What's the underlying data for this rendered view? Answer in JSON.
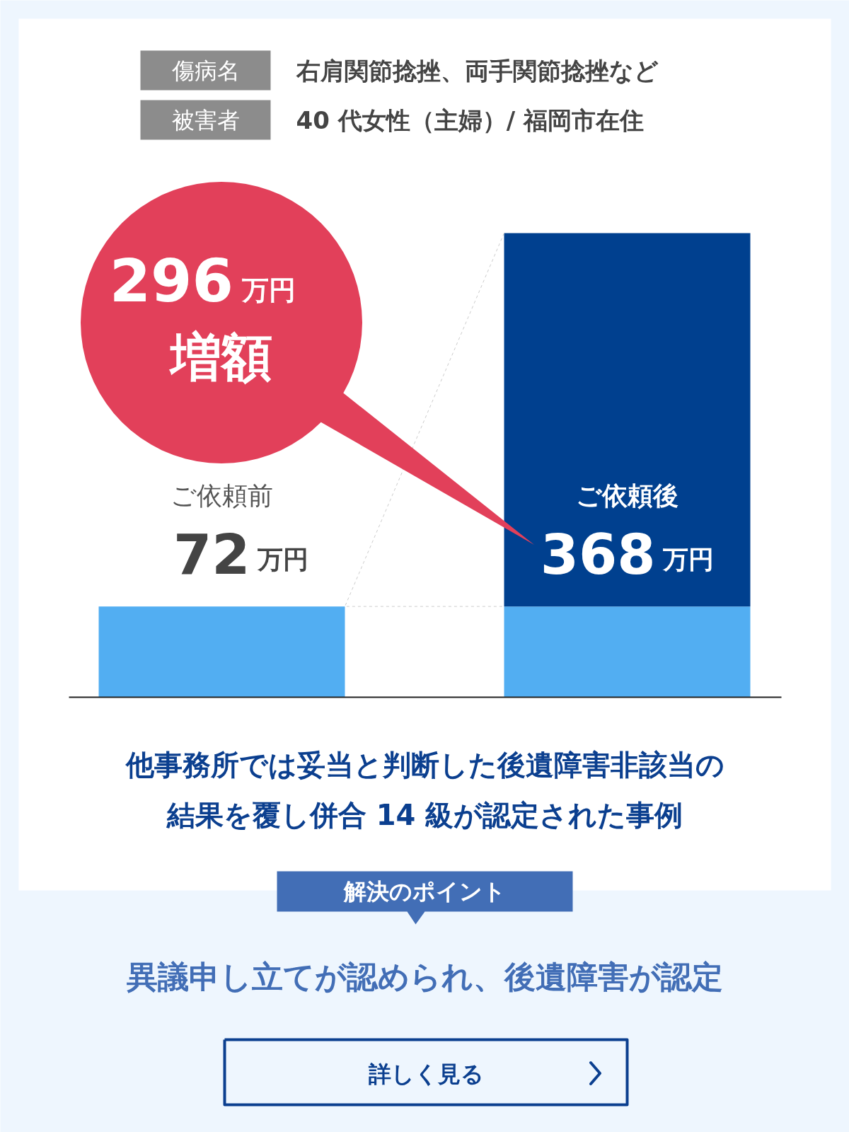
{
  "chart_data": {
    "type": "bar",
    "stacked": true,
    "title": "他事務所では妥当と判断した後遺障害非該当の結果を覆し併合 14 級が認定された事例",
    "categories": [
      "ご依頼前",
      "ご依頼後"
    ],
    "series": [
      {
        "color": "#52aef2",
        "values": [
          72,
          72
        ],
        "value_labels": [
          "72万円",
          null
        ]
      },
      {
        "color": "#00408f",
        "values": [
          null,
          296
        ]
      }
    ],
    "totals": [
      null,
      "368万円"
    ],
    "ref_lines": [
      {
        "axis": "y",
        "value": 72,
        "color": "#cccccc",
        "line_style": "dashed"
      }
    ],
    "annotations": [
      "296万円増額",
      "傷病名",
      "右肩関節捻挫、両手関節捻挫など",
      "被害者",
      "40 代女性（主婦）/ 福岡市在住",
      "解決のポイント",
      "異議申し立てが認められ、後遺障害が認定",
      "詳しく見る"
    ]
  }
}
